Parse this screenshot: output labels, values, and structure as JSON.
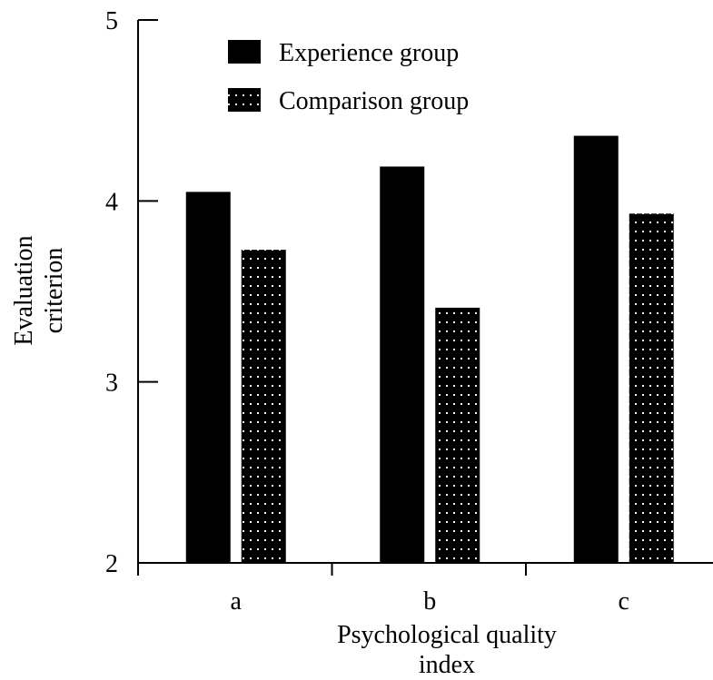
{
  "chart_data": {
    "type": "bar",
    "title": "",
    "xlabel": [
      "Psychological quality",
      "index"
    ],
    "ylabel": [
      "Evaluation",
      "criterion"
    ],
    "categories": [
      "a",
      "b",
      "c"
    ],
    "ylim": [
      2,
      5
    ],
    "yticks": [
      "2",
      "3",
      "4",
      "5"
    ],
    "grid": false,
    "legend_position": "top-left",
    "series": [
      {
        "name": "Experience group",
        "values": [
          4.05,
          4.19,
          4.36
        ],
        "fill": "solid",
        "color": "#000000"
      },
      {
        "name": "Comparison group",
        "values": [
          3.73,
          3.41,
          3.93
        ],
        "fill": "dotted",
        "color": "#000000"
      }
    ]
  }
}
